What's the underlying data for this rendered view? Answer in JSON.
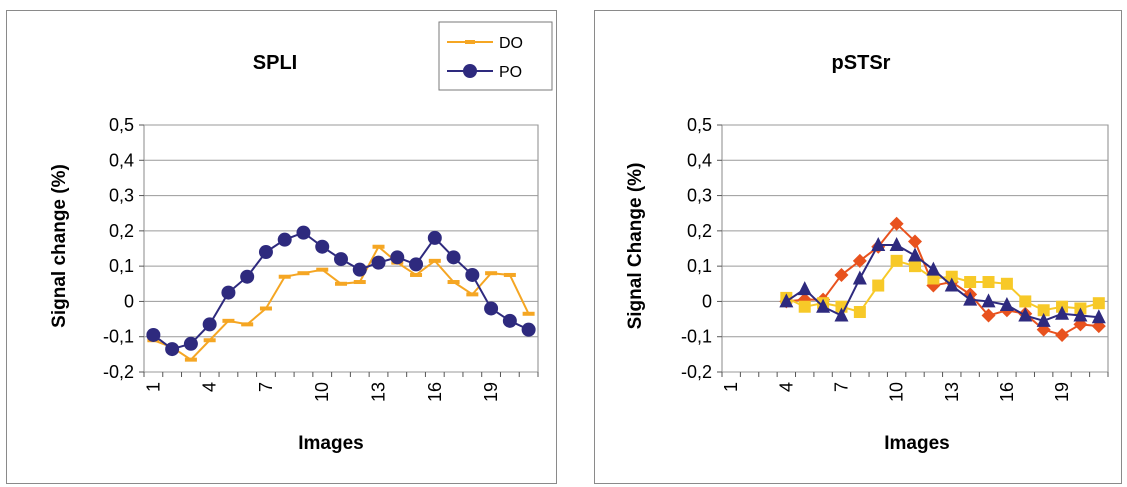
{
  "chart_data": [
    {
      "type": "line",
      "title": "SPLI",
      "xlabel": "Images",
      "ylabel": "Signal change (%)",
      "ylim": [
        -0.2,
        0.5
      ],
      "yticks": [
        "-0,2",
        "-0,1",
        "0",
        "0,1",
        "0,2",
        "0,3",
        "0,4",
        "0,5"
      ],
      "xticks": [
        "1",
        "4",
        "7",
        "10",
        "13",
        "16",
        "19"
      ],
      "xlim": [
        1,
        21
      ],
      "grid": "horizontal",
      "legend_position": "top-right",
      "series": [
        {
          "name": "DO",
          "color": "#F5A623",
          "marker": "dash",
          "x": [
            1,
            2,
            3,
            4,
            5,
            6,
            7,
            8,
            9,
            10,
            11,
            12,
            13,
            14,
            15,
            16,
            17,
            18,
            19,
            20,
            21
          ],
          "values": [
            -0.11,
            -0.13,
            -0.165,
            -0.11,
            -0.055,
            -0.065,
            -0.02,
            0.07,
            0.08,
            0.09,
            0.05,
            0.055,
            0.155,
            0.11,
            0.075,
            0.115,
            0.055,
            0.02,
            0.08,
            0.075,
            -0.035
          ]
        },
        {
          "name": "PO",
          "color": "#2E2A7E",
          "marker": "circle",
          "x": [
            1,
            2,
            3,
            4,
            5,
            6,
            7,
            8,
            9,
            10,
            11,
            12,
            13,
            14,
            15,
            16,
            17,
            18,
            19,
            20,
            21
          ],
          "values": [
            -0.095,
            -0.135,
            -0.12,
            -0.065,
            0.025,
            0.07,
            0.14,
            0.175,
            0.195,
            0.155,
            0.12,
            0.09,
            0.11,
            0.125,
            0.105,
            0.18,
            0.125,
            0.075,
            -0.02,
            -0.055,
            -0.08
          ]
        }
      ]
    },
    {
      "type": "line",
      "title": "pSTSr",
      "xlabel": "Images",
      "ylabel": "Signal Change (%)",
      "ylim": [
        -0.2,
        0.5
      ],
      "yticks": [
        "-0,2",
        "-0,1",
        "0",
        "0,1",
        "0,2",
        "0,3",
        "0,4",
        "0,5"
      ],
      "xticks": [
        "1",
        "4",
        "7",
        "10",
        "13",
        "16",
        "19"
      ],
      "xlim": [
        1,
        21
      ],
      "grid": "horizontal",
      "series": [
        {
          "color": "#E8521E",
          "marker": "diamond",
          "x": [
            4,
            5,
            6,
            7,
            8,
            9,
            10,
            11,
            12,
            13,
            14,
            15,
            16,
            17,
            18,
            19,
            20,
            21
          ],
          "values": [
            0.0,
            0.005,
            0.005,
            0.075,
            0.115,
            0.155,
            0.22,
            0.17,
            0.045,
            0.055,
            0.02,
            -0.04,
            -0.025,
            -0.035,
            -0.08,
            -0.095,
            -0.065,
            -0.07
          ]
        },
        {
          "color": "#F7C928",
          "marker": "square",
          "x": [
            4,
            5,
            6,
            7,
            8,
            9,
            10,
            11,
            12,
            13,
            14,
            15,
            16,
            17,
            18,
            19,
            20,
            21
          ],
          "values": [
            0.01,
            -0.015,
            -0.005,
            -0.015,
            -0.03,
            0.045,
            0.115,
            0.1,
            0.065,
            0.07,
            0.055,
            0.055,
            0.05,
            0.0,
            -0.025,
            -0.015,
            -0.02,
            -0.005
          ]
        },
        {
          "color": "#2E2A7E",
          "marker": "triangle",
          "x": [
            4,
            5,
            6,
            7,
            8,
            9,
            10,
            11,
            12,
            13,
            14,
            15,
            16,
            17,
            18,
            19,
            20,
            21
          ],
          "values": [
            0.0,
            0.035,
            -0.015,
            -0.04,
            0.065,
            0.16,
            0.16,
            0.13,
            0.09,
            0.045,
            0.005,
            0.0,
            -0.01,
            -0.04,
            -0.055,
            -0.035,
            -0.04,
            -0.045
          ]
        }
      ]
    }
  ]
}
